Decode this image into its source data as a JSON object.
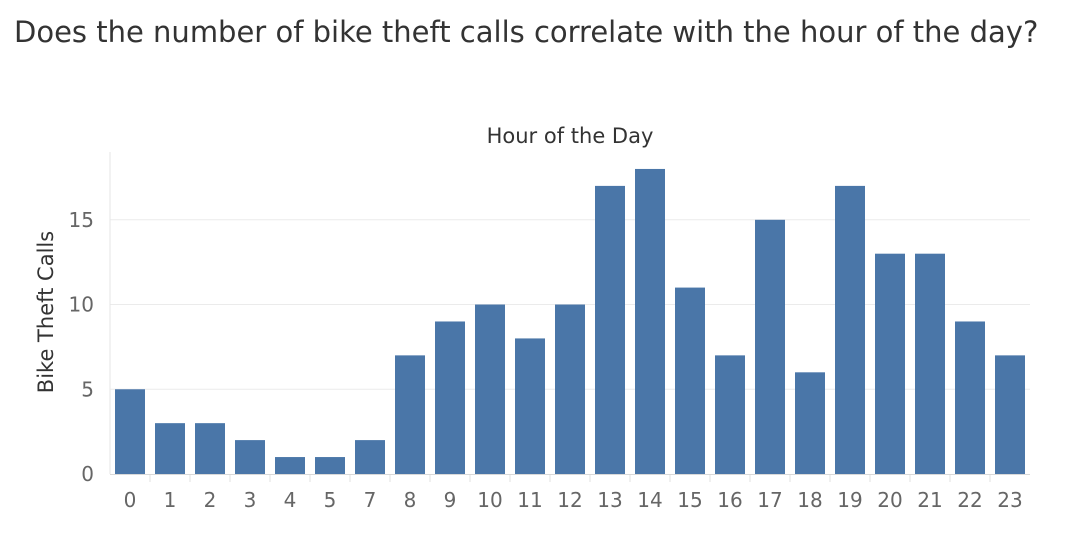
{
  "chart_data": {
    "type": "bar",
    "title": "Does the number of bike theft calls correlate with the hour of the day?",
    "xlabel": "Hour of the Day",
    "ylabel": "Bike Theft Calls",
    "categories": [
      "0",
      "1",
      "2",
      "3",
      "4",
      "5",
      "7",
      "8",
      "9",
      "10",
      "11",
      "12",
      "13",
      "14",
      "15",
      "16",
      "17",
      "18",
      "19",
      "20",
      "21",
      "22",
      "23"
    ],
    "values": [
      5,
      3,
      3,
      2,
      1,
      1,
      2,
      7,
      9,
      10,
      8,
      10,
      17,
      18,
      11,
      7,
      15,
      6,
      17,
      13,
      13,
      9,
      7
    ],
    "ylim": [
      0,
      19
    ],
    "yticks": [
      0,
      5,
      10,
      15
    ],
    "grid": true,
    "bar_color": "#4a76a8"
  }
}
